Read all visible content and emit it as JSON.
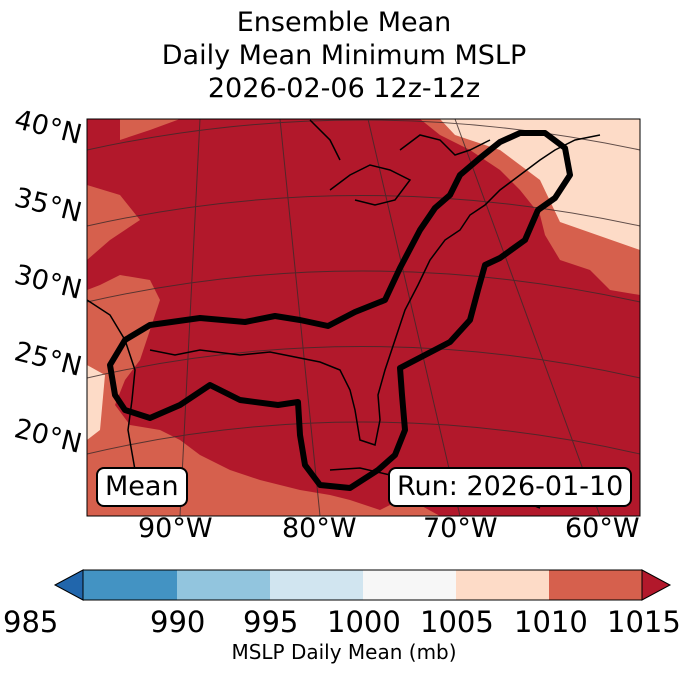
{
  "title": {
    "line1": "Ensemble Mean",
    "line2": "Daily Mean Minimum MSLP",
    "line3": "2026-02-06 12z-12z"
  },
  "map": {
    "lat_labels": [
      "40°N",
      "35°N",
      "30°N",
      "25°N",
      "20°N"
    ],
    "lon_labels": [
      "90°W",
      "80°W",
      "70°W",
      "60°W"
    ],
    "mean_label": "Mean",
    "run_label": "Run: 2026-01-10",
    "colors": {
      "1005_1010": "#fddbc7",
      "1010_1015": "#d6604d",
      "above_1015": "#b2182b",
      "ocean_land_line": "#000000",
      "contour": "#000000"
    }
  },
  "colorbar": {
    "ticks": [
      "985",
      "990",
      "995",
      "1000",
      "1005",
      "1010",
      "1015"
    ],
    "colors": [
      "#2166ac",
      "#4393c3",
      "#92c5de",
      "#d1e5f0",
      "#f7f7f7",
      "#fddbc7",
      "#d6604d",
      "#b2182b"
    ],
    "label": "MSLP Daily Mean (mb)"
  }
}
